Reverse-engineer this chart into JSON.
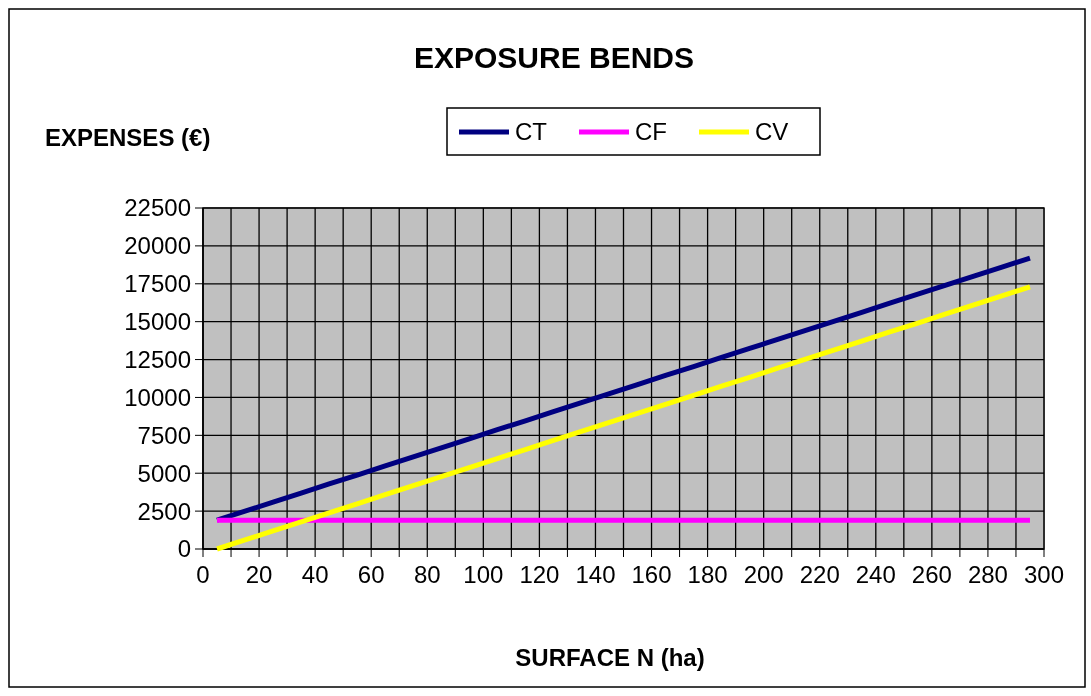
{
  "chart_data": {
    "type": "line",
    "title": "EXPOSURE  BENDS",
    "ylabel": "EXPENSES (€)",
    "xlabel": "SURFACE N (ha)",
    "x": [
      5,
      15,
      25,
      35,
      45,
      55,
      65,
      75,
      85,
      95,
      105,
      115,
      125,
      135,
      145,
      155,
      165,
      175,
      185,
      195,
      205,
      215,
      225,
      235,
      245,
      255,
      265,
      275,
      285,
      295
    ],
    "series": [
      {
        "name": "CT",
        "color": "#000080",
        "values": [
          1900,
          2500,
          3090,
          3690,
          4290,
          4880,
          5480,
          6080,
          6670,
          7270,
          7870,
          8460,
          9060,
          9660,
          10250,
          10850,
          11450,
          12040,
          12640,
          13230,
          13830,
          14430,
          15020,
          15620,
          16220,
          16810,
          17410,
          18010,
          18600,
          19200
        ]
      },
      {
        "name": "CF",
        "color": "#ff00ff",
        "values": [
          1900,
          1900,
          1900,
          1900,
          1900,
          1900,
          1900,
          1900,
          1900,
          1900,
          1900,
          1900,
          1900,
          1900,
          1900,
          1900,
          1900,
          1900,
          1900,
          1900,
          1900,
          1900,
          1900,
          1900,
          1900,
          1900,
          1900,
          1900,
          1900,
          1900
        ]
      },
      {
        "name": "CV",
        "color": "#ffff00",
        "values": [
          0,
          600,
          1190,
          1790,
          2390,
          2980,
          3580,
          4180,
          4770,
          5370,
          5970,
          6560,
          7160,
          7760,
          8350,
          8950,
          9550,
          10140,
          10740,
          11330,
          11930,
          12530,
          13120,
          13720,
          14320,
          14910,
          15510,
          16110,
          16700,
          17300
        ]
      }
    ],
    "xlim": [
      0,
      300
    ],
    "xticks": [
      0,
      {
        "value": 10,
        "label": null
      },
      20,
      {
        "value": 30,
        "label": null
      },
      40,
      {
        "value": 50,
        "label": null
      },
      60,
      {
        "value": 70,
        "label": null
      },
      80,
      {
        "value": 90,
        "label": null
      },
      100,
      {
        "value": 110,
        "label": null
      },
      120,
      {
        "value": 130,
        "label": null
      },
      140,
      {
        "value": 150,
        "label": null
      },
      160,
      {
        "value": 170,
        "label": null
      },
      180,
      {
        "value": 190,
        "label": null
      },
      200,
      {
        "value": 210,
        "label": null
      },
      220,
      {
        "value": 230,
        "label": null
      },
      240,
      {
        "value": 250,
        "label": null
      },
      260,
      {
        "value": 270,
        "label": null
      },
      280,
      {
        "value": 290,
        "label": null
      },
      300
    ],
    "ylim": [
      0,
      22500
    ],
    "yticks": [
      0,
      2500,
      5000,
      7500,
      10000,
      12500,
      15000,
      17500,
      20000,
      22500
    ],
    "grid": true,
    "legend": "top",
    "marker": "none",
    "line_style": "solid"
  }
}
